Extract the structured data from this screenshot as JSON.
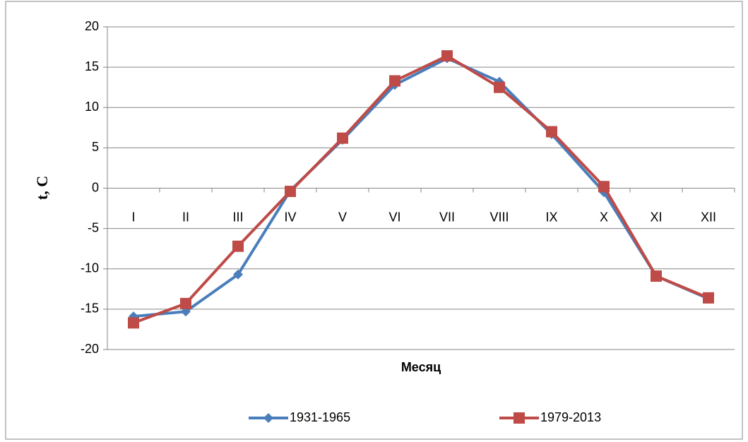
{
  "chart_data": {
    "type": "line",
    "x_label": "Месяц",
    "y_label": "t, C",
    "categories": [
      "I",
      "II",
      "III",
      "IV",
      "V",
      "VI",
      "VII",
      "VIII",
      "IX",
      "X",
      "XI",
      "XII"
    ],
    "series": [
      {
        "name": "1931-1965",
        "color": "#4a7ebb",
        "marker": "diamond",
        "values": [
          -15.9,
          -15.3,
          -10.7,
          -0.3,
          6.0,
          12.8,
          16.1,
          13.2,
          6.7,
          -0.5,
          -10.9,
          -13.7
        ]
      },
      {
        "name": "1979-2013",
        "color": "#be4b48",
        "marker": "square",
        "values": [
          -16.7,
          -14.3,
          -7.2,
          -0.4,
          6.2,
          13.3,
          16.4,
          12.5,
          7.0,
          0.2,
          -10.9,
          -13.6
        ]
      }
    ],
    "ylim": [
      -20,
      20
    ],
    "yticks": [
      -20,
      -15,
      -10,
      -5,
      0,
      5,
      10,
      15,
      20
    ],
    "grid": true,
    "legend": "bottom"
  }
}
